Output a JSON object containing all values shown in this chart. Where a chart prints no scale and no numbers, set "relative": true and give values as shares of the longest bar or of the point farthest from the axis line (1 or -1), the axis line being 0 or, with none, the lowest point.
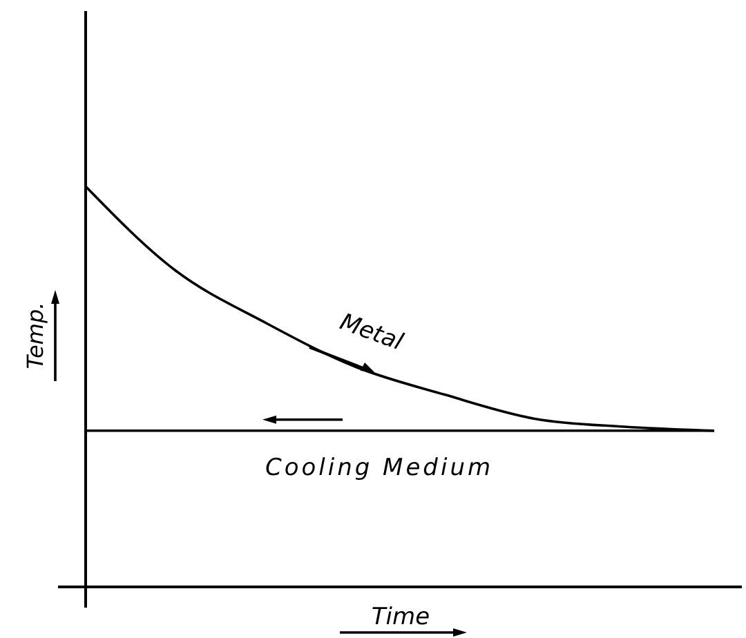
{
  "chart_data": {
    "type": "line",
    "relative": true,
    "xlabel": "Time",
    "ylabel": "Temp.",
    "categories": [
      null,
      null,
      null,
      null,
      null,
      null,
      null,
      null
    ],
    "marker": "none",
    "line_style": "solid",
    "series": [
      {
        "name": "Metal",
        "color": "#000000",
        "values": [
          1,
          0.79,
          0.66,
          0.55,
          0.48,
          0.42,
          0.4,
          0.39
        ]
      },
      {
        "name": "Cooling Medium",
        "color": "#000000",
        "values": [
          0.39,
          0.39,
          0.39,
          0.39,
          0.39,
          0.39,
          0.39,
          0.39
        ]
      }
    ]
  }
}
